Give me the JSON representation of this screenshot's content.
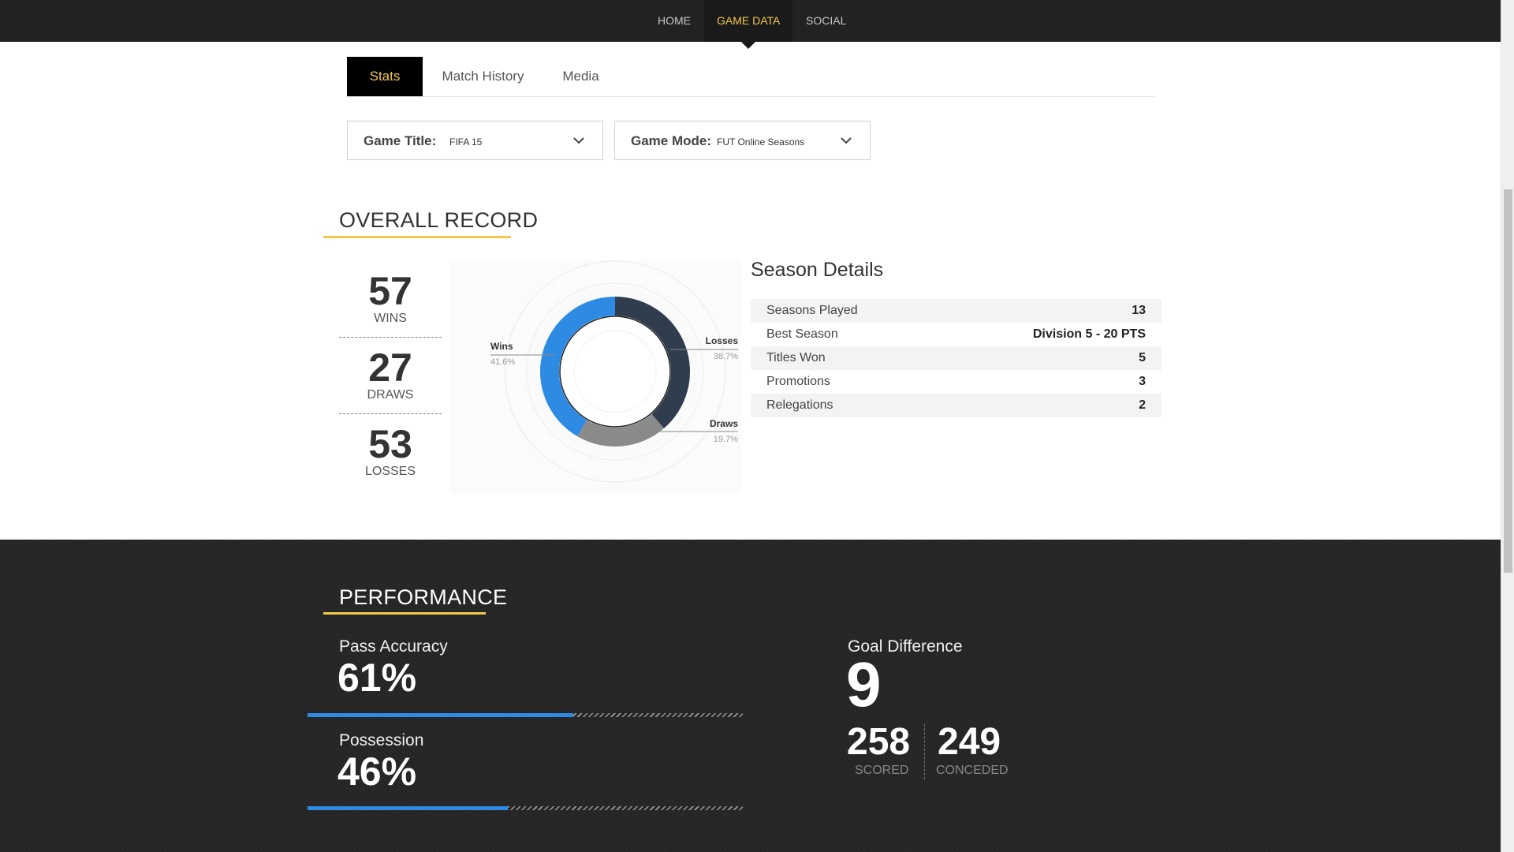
{
  "nav": {
    "items": [
      {
        "label": "HOME"
      },
      {
        "label": "GAME DATA"
      },
      {
        "label": "SOCIAL"
      }
    ]
  },
  "tabs": [
    {
      "label": "Stats"
    },
    {
      "label": "Match History"
    },
    {
      "label": "Media"
    }
  ],
  "filters": {
    "game_title": {
      "label": "Game Title:",
      "value": "FIFA 15"
    },
    "game_mode": {
      "label": "Game Mode:",
      "value": "FUT Online Seasons"
    }
  },
  "overall_record": {
    "title": "OVERALL RECORD",
    "wins": {
      "value": "57",
      "label": "WINS"
    },
    "draws": {
      "value": "27",
      "label": "DRAWS"
    },
    "losses": {
      "value": "53",
      "label": "LOSSES"
    }
  },
  "donut": {
    "segments": [
      {
        "name": "Wins",
        "percent_label": "41.6%",
        "percent": 41.6,
        "color": "#2e8be3"
      },
      {
        "name": "Draws",
        "percent_label": "19.7%",
        "percent": 19.7,
        "color": "#8a8a8a"
      },
      {
        "name": "Losses",
        "percent_label": "38.7%",
        "percent": 38.7,
        "color": "#2f3d4f"
      }
    ]
  },
  "season_details": {
    "title": "Season Details",
    "rows": [
      {
        "label": "Seasons Played",
        "value": "13"
      },
      {
        "label": "Best Season",
        "value": "Division 5 - 20 PTS"
      },
      {
        "label": "Titles Won",
        "value": "5"
      },
      {
        "label": "Promotions",
        "value": "3"
      },
      {
        "label": "Relegations",
        "value": "2"
      }
    ]
  },
  "performance": {
    "title": "PERFORMANCE",
    "pass_accuracy": {
      "label": "Pass Accuracy",
      "value": "61%",
      "fraction": 0.61
    },
    "possession": {
      "label": "Possession",
      "value": "46%",
      "fraction": 0.46
    },
    "goal_difference": {
      "label": "Goal Difference",
      "value": "9",
      "scored": {
        "value": "258",
        "label": "SCORED"
      },
      "conceded": {
        "value": "249",
        "label": "CONCEDED"
      }
    }
  },
  "colors": {
    "accent_yellow": "#f2c94c",
    "bar_blue": "#2e8be3",
    "nav_bg": "#222222",
    "dark_bg": "#242424"
  }
}
